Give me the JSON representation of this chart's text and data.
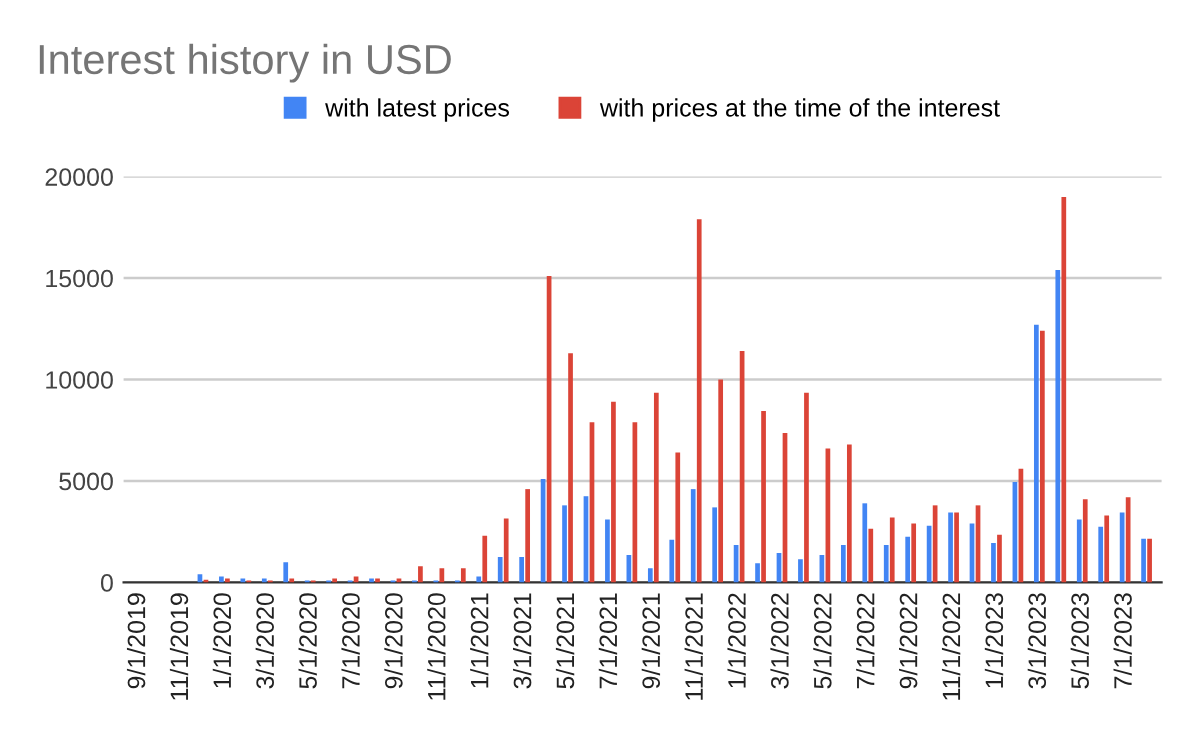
{
  "chart_data": {
    "type": "bar",
    "title": "Interest history in USD",
    "categories": [
      "9/1/2019",
      null,
      "11/1/2019",
      null,
      "1/1/2020",
      null,
      "3/1/2020",
      null,
      "5/1/2020",
      null,
      "7/1/2020",
      null,
      "9/1/2020",
      null,
      "11/1/2020",
      null,
      "1/1/2021",
      null,
      "3/1/2021",
      null,
      "5/1/2021",
      null,
      "7/1/2021",
      null,
      "9/1/2021",
      null,
      "11/1/2021",
      null,
      "1/1/2022",
      null,
      "3/1/2022",
      null,
      "5/1/2022",
      null,
      "7/1/2022",
      null,
      "9/1/2022",
      null,
      "11/1/2022",
      null,
      "1/1/2023",
      null,
      "3/1/2023",
      null,
      "5/1/2023",
      null,
      "7/1/2023",
      null
    ],
    "series": [
      {
        "name": "with latest prices",
        "color": "#4285f4",
        "values": [
          null,
          null,
          null,
          400,
          300,
          200,
          200,
          1000,
          100,
          100,
          100,
          200,
          100,
          100,
          100,
          100,
          300,
          1250,
          1250,
          5100,
          3800,
          4250,
          3100,
          1350,
          700,
          2100,
          4600,
          3700,
          1850,
          950,
          1450,
          1150,
          1350,
          1850,
          3900,
          1850,
          2250,
          2800,
          3450,
          2900,
          1950,
          4950,
          12700,
          15400,
          3100,
          2750,
          3450,
          2150
        ]
      },
      {
        "name": "with prices at the time of the interest",
        "color": "#db4437",
        "values": [
          null,
          null,
          null,
          130,
          200,
          100,
          100,
          200,
          100,
          200,
          300,
          200,
          200,
          800,
          700,
          700,
          2300,
          3150,
          4600,
          15100,
          11300,
          7900,
          8900,
          7900,
          9350,
          6400,
          17900,
          10000,
          11400,
          8450,
          7370,
          9350,
          6600,
          6800,
          2650,
          3200,
          2900,
          3800,
          3450,
          3800,
          2350,
          5600,
          12400,
          19000,
          4100,
          3300,
          4200,
          2150
        ]
      }
    ],
    "ylim": [
      0,
      20000
    ],
    "yticks": [
      0,
      5000,
      10000,
      15000,
      20000
    ],
    "grid": "y",
    "legend": "top"
  }
}
